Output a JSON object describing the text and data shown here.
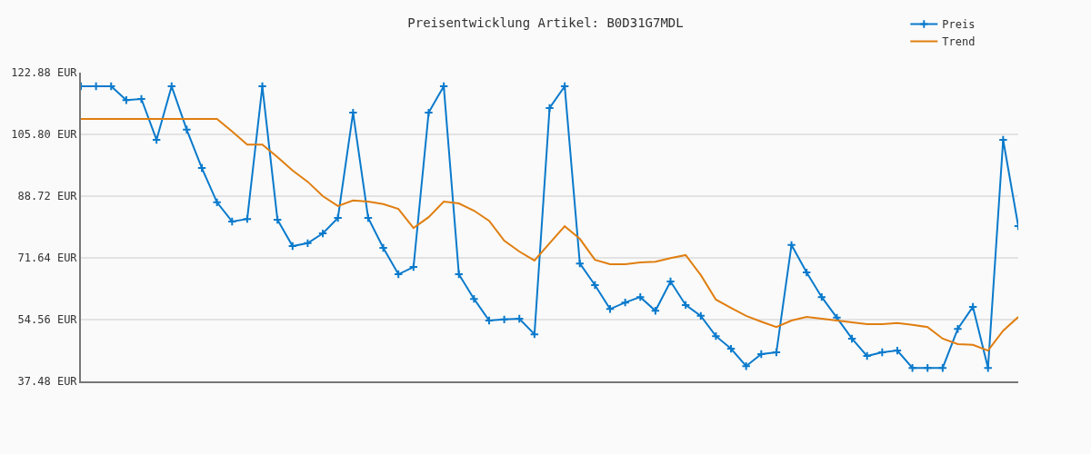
{
  "chart_data": {
    "type": "line",
    "title": "Preisentwicklung Artikel: B0D31G7MDL",
    "categories": [
      null,
      null,
      null,
      null,
      null,
      null,
      null,
      null,
      null,
      null,
      null,
      null,
      null,
      null,
      null,
      null,
      null,
      null,
      null,
      null,
      null,
      null,
      null,
      null,
      null,
      null,
      null,
      null,
      null,
      null,
      null,
      null,
      null,
      null,
      null,
      null,
      null,
      null,
      null,
      null,
      null,
      null,
      null,
      null,
      null,
      null,
      null,
      null,
      null,
      null,
      null,
      null,
      null,
      null,
      null,
      null,
      null,
      null,
      null,
      null,
      null,
      null,
      null
    ],
    "series": [
      {
        "name": "Preis",
        "color": "#0a7acc",
        "marker": "cross",
        "values": [
          119.1,
          119.1,
          119.1,
          115.3,
          115.6,
          104.3,
          119.1,
          107.1,
          96.5,
          87.0,
          81.7,
          82.4,
          119.1,
          82.2,
          74.9,
          75.7,
          78.4,
          82.7,
          111.8,
          82.7,
          74.4,
          67.1,
          69.1,
          111.8,
          119.1,
          67.1,
          60.3,
          54.3,
          54.6,
          54.8,
          50.5,
          113.1,
          119.1,
          70.1,
          64.1,
          57.5,
          59.3,
          60.8,
          57.0,
          65.1,
          58.6,
          55.6,
          50.0,
          46.5,
          41.7,
          45.0,
          45.5,
          75.2,
          67.6,
          60.8,
          55.1,
          49.3,
          44.5,
          45.5,
          46.0,
          41.2,
          41.2,
          41.2,
          52.0,
          58.1,
          41.2,
          104.3,
          80.4
        ]
      },
      {
        "name": "Trend",
        "color": "#e07e10",
        "marker": "none",
        "values": [
          110.1,
          110.1,
          110.1,
          110.1,
          110.1,
          110.1,
          110.1,
          110.1,
          110.1,
          110.1,
          106.6,
          103.0,
          103.0,
          99.5,
          95.8,
          92.7,
          88.7,
          86.0,
          87.5,
          87.2,
          86.5,
          85.2,
          79.9,
          82.9,
          87.2,
          86.7,
          84.7,
          81.9,
          76.4,
          73.4,
          70.9,
          75.7,
          80.4,
          76.9,
          71.1,
          69.9,
          69.9,
          70.4,
          70.6,
          71.6,
          72.4,
          66.9,
          60.1,
          57.8,
          55.6,
          54.0,
          52.5,
          54.3,
          55.3,
          54.8,
          54.3,
          53.8,
          53.3,
          53.3,
          53.6,
          53.1,
          52.5,
          49.3,
          47.8,
          47.6,
          46.0,
          51.5,
          55.3
        ]
      }
    ],
    "ylim": [
      37.48,
      122.88
    ],
    "yticks": [
      {
        "value": 37.48,
        "label": "37.48 EUR"
      },
      {
        "value": 54.56,
        "label": "54.56 EUR"
      },
      {
        "value": 71.64,
        "label": "71.64 EUR"
      },
      {
        "value": 88.72,
        "label": "88.72 EUR"
      },
      {
        "value": 105.8,
        "label": "105.80 EUR"
      },
      {
        "value": 122.88,
        "label": "122.88 EUR"
      }
    ],
    "grid": "y",
    "legend": "top right",
    "tick_labels": "y",
    "line_style": "solid"
  }
}
